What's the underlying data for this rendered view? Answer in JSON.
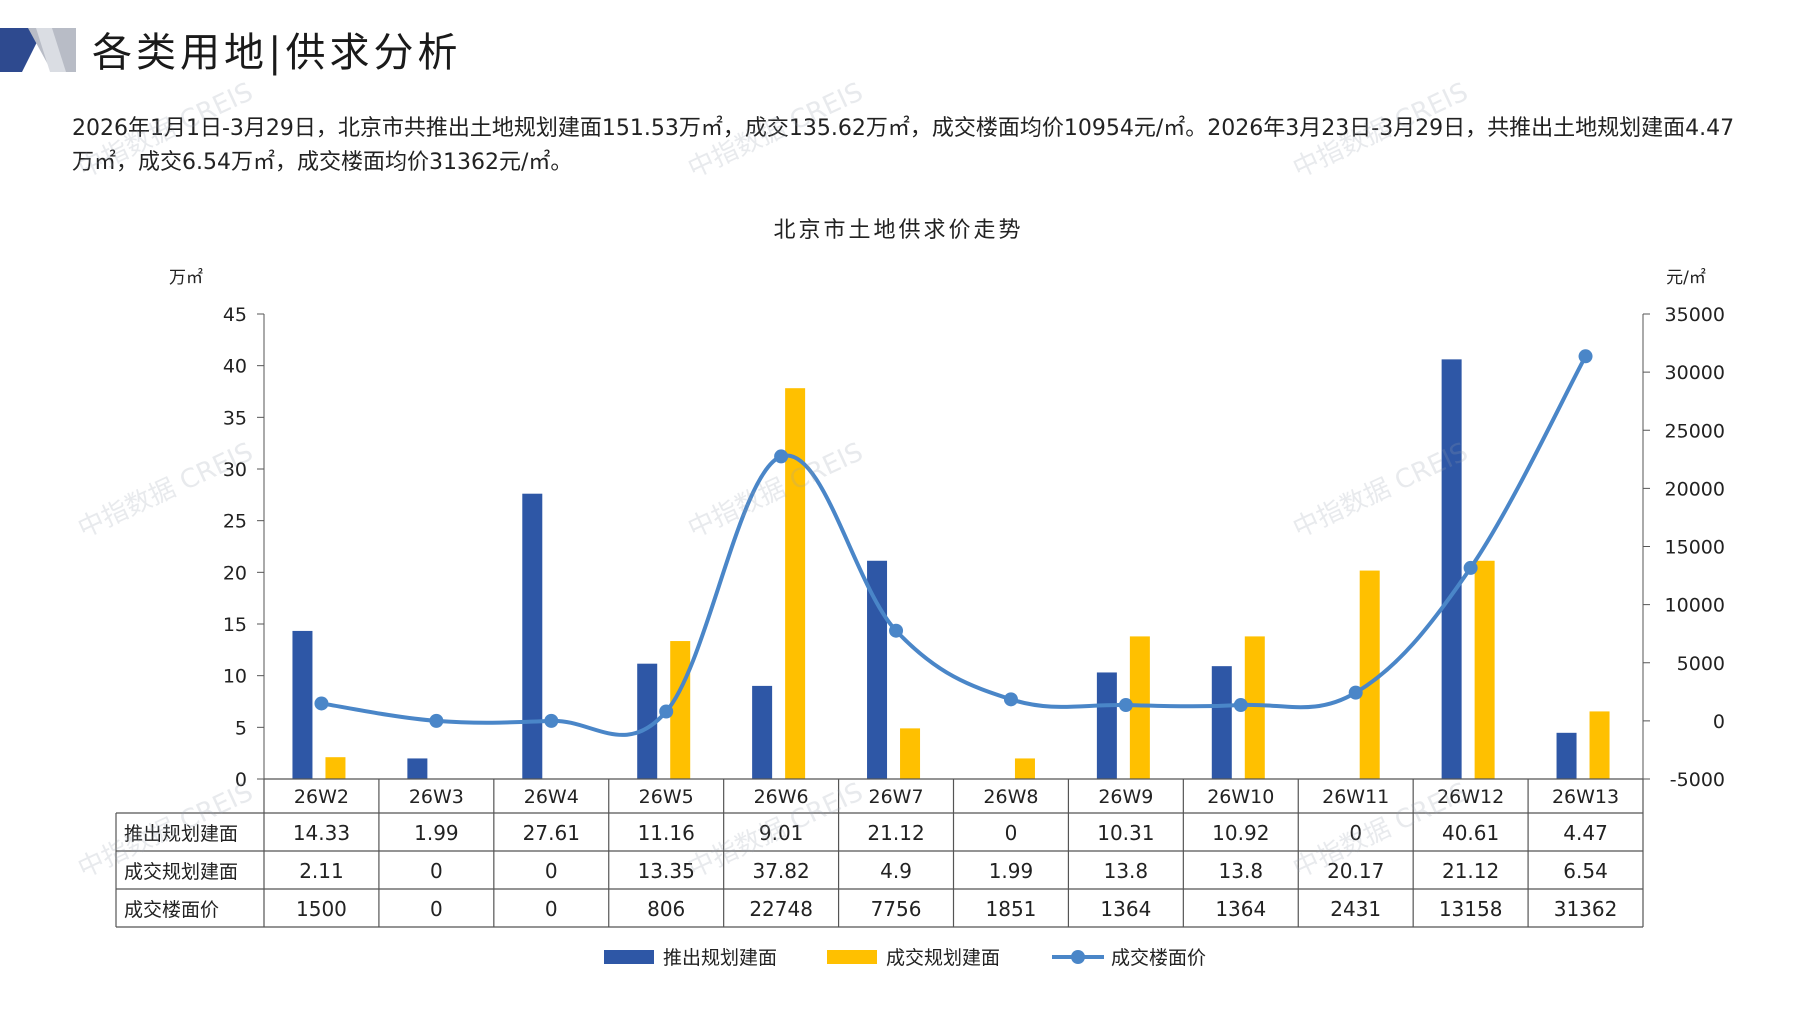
{
  "page_title": "各类用地|供求分析",
  "summary_text": "2026年1月1日-3月29日，北京市共推出土地规划建面151.53万㎡，成交135.62万㎡，成交楼面均价10954元/㎡。2026年3月23日-3月29日，共推出土地规划建面4.47万㎡，成交6.54万㎡，成交楼面均价31362元/㎡。",
  "watermark_text": "中指数据 CREIS",
  "colors": {
    "supply_bar": "#2E57A6",
    "deal_bar": "#FFC000",
    "price_line": "#4A86C8",
    "logo_dark": "#2E4A8F",
    "logo_light": "#B8BCC6"
  },
  "chart_data": {
    "type": "bar+line",
    "title": "北京市土地供求价走势",
    "y_left_unit": "万㎡",
    "y_right_unit": "元/㎡",
    "ylim_left": [
      0,
      45
    ],
    "yticks_left": [
      "0",
      "5",
      "10",
      "15",
      "20",
      "25",
      "30",
      "35",
      "40",
      "45"
    ],
    "ylim_right": [
      -5000,
      35000
    ],
    "yticks_right": [
      "-5000",
      "0",
      "5000",
      "10000",
      "15000",
      "20000",
      "25000",
      "30000",
      "35000"
    ],
    "categories": [
      "26W2",
      "26W3",
      "26W4",
      "26W5",
      "26W6",
      "26W7",
      "26W8",
      "26W9",
      "26W10",
      "26W11",
      "26W12",
      "26W13"
    ],
    "series": [
      {
        "name": "推出规划建面",
        "type": "bar",
        "axis": "left",
        "values": [
          14.33,
          1.99,
          27.61,
          11.16,
          9.01,
          21.12,
          0,
          10.31,
          10.92,
          0,
          40.61,
          4.47
        ],
        "labels": [
          "14.33",
          "1.99",
          "27.61",
          "11.16",
          "9.01",
          "21.12",
          "0",
          "10.31",
          "10.92",
          "0",
          "40.61",
          "4.47"
        ]
      },
      {
        "name": "成交规划建面",
        "type": "bar",
        "axis": "left",
        "values": [
          2.11,
          0,
          0,
          13.35,
          37.82,
          4.9,
          1.99,
          13.8,
          13.8,
          20.17,
          21.12,
          6.54
        ],
        "labels": [
          "2.11",
          "0",
          "0",
          "13.35",
          "37.82",
          "4.9",
          "1.99",
          "13.8",
          "13.8",
          "20.17",
          "21.12",
          "6.54"
        ]
      },
      {
        "name": "成交楼面价",
        "type": "line",
        "axis": "right",
        "values": [
          1500,
          0,
          0,
          806,
          22748,
          7756,
          1851,
          1364,
          1364,
          2431,
          13158,
          31362
        ],
        "labels": [
          "1500",
          "0",
          "0",
          "806",
          "22748",
          "7756",
          "1851",
          "1364",
          "1364",
          "2431",
          "13158",
          "31362"
        ]
      }
    ],
    "legend_position": "bottom",
    "grid": false
  }
}
